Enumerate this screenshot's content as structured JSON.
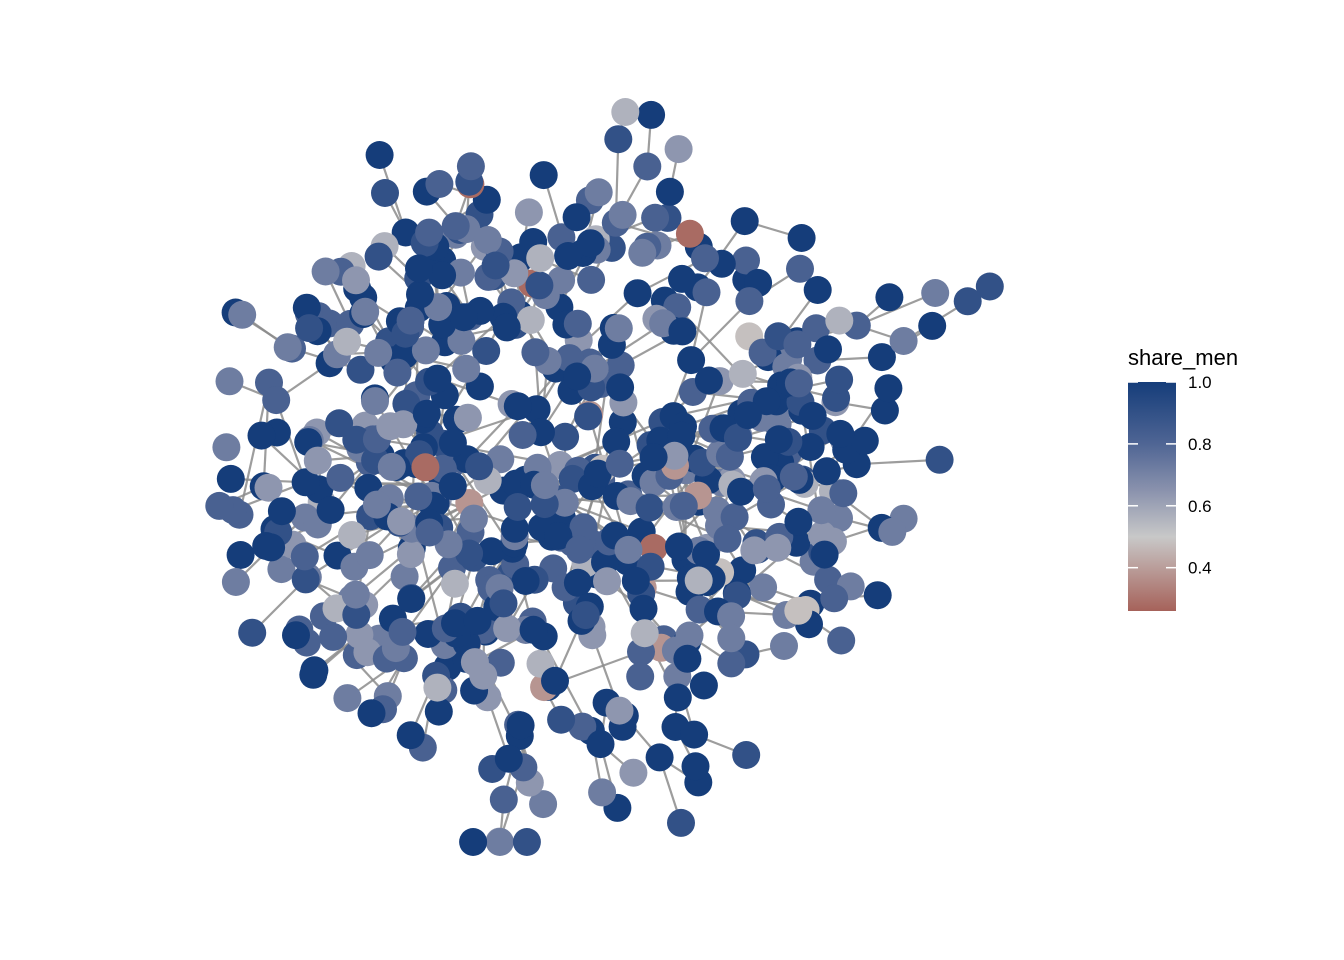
{
  "chart_data": {
    "type": "network",
    "node_count": 620,
    "random_seed": 7,
    "edge_color": "#8c8c8c",
    "legend": {
      "title": "share_men",
      "placement": "right",
      "range": [
        0.26,
        1.0
      ],
      "ticks": [
        {
          "value": 1.0,
          "label": "1.0"
        },
        {
          "value": 0.8,
          "label": "0.8"
        },
        {
          "value": 0.6,
          "label": "0.6"
        },
        {
          "value": 0.4,
          "label": "0.4"
        }
      ],
      "color_stops": [
        {
          "value": 0.26,
          "color": "#a6625a"
        },
        {
          "value": 0.5,
          "color": "#c8c8c8"
        },
        {
          "value": 0.65,
          "color": "#8a92ad"
        },
        {
          "value": 0.8,
          "color": "#4f6594"
        },
        {
          "value": 1.0,
          "color": "#153d7a"
        }
      ]
    },
    "share_men_distribution": [
      {
        "value": 1.0,
        "weight": 38
      },
      {
        "value": 0.9,
        "weight": 12
      },
      {
        "value": 0.82,
        "weight": 18
      },
      {
        "value": 0.72,
        "weight": 14
      },
      {
        "value": 0.64,
        "weight": 9
      },
      {
        "value": 0.56,
        "weight": 5
      },
      {
        "value": 0.48,
        "weight": 2
      },
      {
        "value": 0.38,
        "weight": 1.2
      },
      {
        "value": 0.28,
        "weight": 0.8
      }
    ]
  }
}
